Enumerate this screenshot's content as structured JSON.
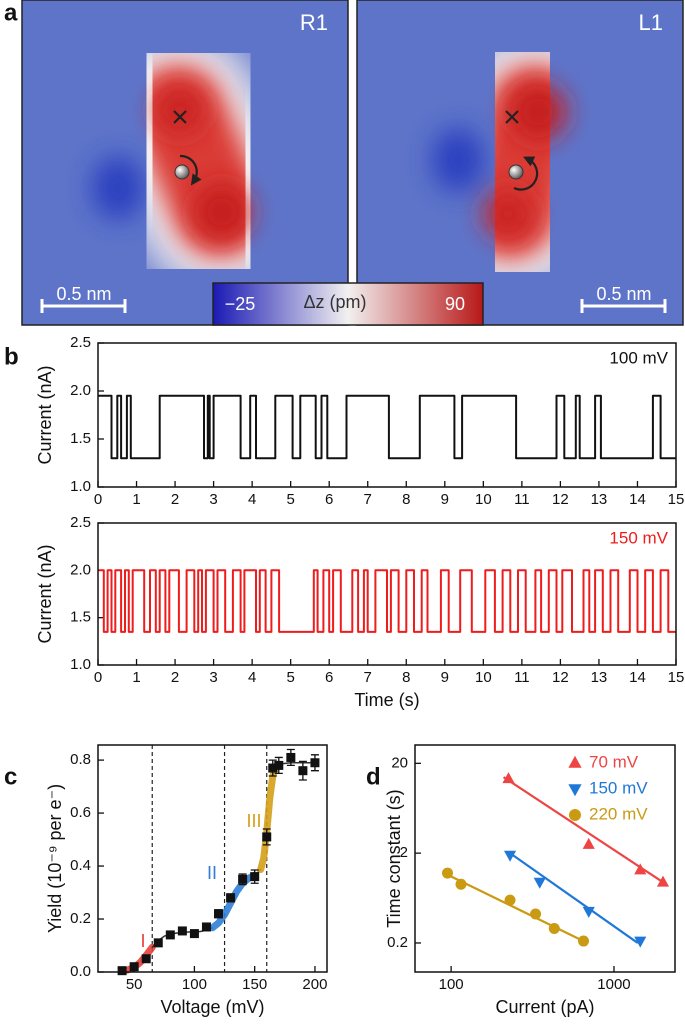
{
  "panel_labels": [
    "a",
    "b",
    "c",
    "d"
  ],
  "images": [
    {
      "label": "R1",
      "scale_bar": "0.5 nm"
    },
    {
      "label": "L1",
      "scale_bar": "0.5 nm"
    }
  ],
  "colorbar": {
    "min": {
      "value": -25,
      "label": "−25"
    },
    "title": "Δz (pm)",
    "max": 90
  },
  "chart_data": [
    {
      "type": "line",
      "ylabel": "Current (nA)",
      "annotation": "100 mV",
      "xlim": [
        0,
        15
      ],
      "xticks": [
        0,
        1,
        2,
        3,
        4,
        5,
        6,
        7,
        8,
        9,
        10,
        11,
        12,
        13,
        14,
        15
      ],
      "ylim": [
        1,
        2.5
      ],
      "yticks": [
        {
          "value": 1,
          "label": "1.0"
        },
        1.5,
        {
          "value": 2,
          "label": "2.0"
        },
        2.5
      ],
      "series": [
        {
          "color": "#111111",
          "x": [
            0,
            0.35,
            0.35,
            0.5,
            0.5,
            0.6,
            0.6,
            0.75,
            0.75,
            0.85,
            0.85,
            1.6,
            1.6,
            2.75,
            2.75,
            2.85,
            2.85,
            2.9,
            2.9,
            3.0,
            3.0,
            3.7,
            3.7,
            3.95,
            3.95,
            4.1,
            4.1,
            4.6,
            4.6,
            5.05,
            5.05,
            5.25,
            5.25,
            5.65,
            5.65,
            5.8,
            5.8,
            5.95,
            5.95,
            6.45,
            6.45,
            7.55,
            7.55,
            8.35,
            8.35,
            9.25,
            9.25,
            9.45,
            9.45,
            10.85,
            10.85,
            11.9,
            11.9,
            12.1,
            12.1,
            12.4,
            12.4,
            12.5,
            12.5,
            12.9,
            12.9,
            13.05,
            13.05,
            14.4,
            14.4,
            14.6,
            14.6,
            15
          ],
          "values": [
            1.95,
            1.95,
            1.3,
            1.3,
            1.95,
            1.95,
            1.3,
            1.3,
            1.95,
            1.95,
            1.3,
            1.3,
            1.95,
            1.95,
            1.3,
            1.3,
            1.95,
            1.95,
            1.3,
            1.3,
            1.95,
            1.95,
            1.3,
            1.3,
            1.95,
            1.95,
            1.3,
            1.3,
            1.95,
            1.95,
            1.3,
            1.3,
            1.95,
            1.95,
            1.3,
            1.3,
            1.95,
            1.95,
            1.3,
            1.3,
            1.95,
            1.95,
            1.3,
            1.3,
            1.95,
            1.95,
            1.3,
            1.3,
            1.95,
            1.95,
            1.3,
            1.3,
            1.95,
            1.95,
            1.3,
            1.3,
            1.95,
            1.95,
            1.3,
            1.3,
            1.95,
            1.95,
            1.3,
            1.3,
            1.95,
            1.95,
            1.3,
            1.3
          ]
        }
      ]
    },
    {
      "type": "line",
      "ylabel": "Current (nA)",
      "xlabel": "Time (s)",
      "annotation": "150 mV",
      "xlim": [
        0,
        15
      ],
      "xticks": [
        0,
        1,
        2,
        3,
        4,
        5,
        6,
        7,
        8,
        9,
        10,
        11,
        12,
        13,
        14,
        15
      ],
      "ylim": [
        1,
        2.5
      ],
      "yticks": [
        {
          "value": 1,
          "label": "1.0"
        },
        1.5,
        {
          "value": 2,
          "label": "2.0"
        },
        2.5
      ],
      "series": [
        {
          "color": "#ee1c1c",
          "x": [
            0,
            0.15,
            0.15,
            0.25,
            0.25,
            0.35,
            0.35,
            0.45,
            0.45,
            0.6,
            0.6,
            0.7,
            0.7,
            0.8,
            0.8,
            0.9,
            0.9,
            1.2,
            1.2,
            1.35,
            1.35,
            1.5,
            1.5,
            1.6,
            1.6,
            1.75,
            1.75,
            1.85,
            1.85,
            2.1,
            2.1,
            2.3,
            2.3,
            2.5,
            2.5,
            2.6,
            2.6,
            2.7,
            2.7,
            2.8,
            2.8,
            3.0,
            3.0,
            3.1,
            3.1,
            3.3,
            3.3,
            3.5,
            3.5,
            3.7,
            3.7,
            3.8,
            3.8,
            4.1,
            4.1,
            4.2,
            4.2,
            4.35,
            4.35,
            4.5,
            4.5,
            4.7,
            4.7,
            5.6,
            5.6,
            5.7,
            5.7,
            5.85,
            5.85,
            6.0,
            6.0,
            6.1,
            6.1,
            6.3,
            6.3,
            6.6,
            6.6,
            6.75,
            6.75,
            6.9,
            6.9,
            7.0,
            7.0,
            7.2,
            7.2,
            7.5,
            7.5,
            7.6,
            7.6,
            7.8,
            7.8,
            8.0,
            8.0,
            8.2,
            8.2,
            8.4,
            8.4,
            8.55,
            8.55,
            8.9,
            8.9,
            9.1,
            9.1,
            9.4,
            9.4,
            9.7,
            9.7,
            10.05,
            10.05,
            10.3,
            10.3,
            10.5,
            10.5,
            10.7,
            10.7,
            10.9,
            10.9,
            11.1,
            11.1,
            11.35,
            11.35,
            11.5,
            11.5,
            11.7,
            11.7,
            11.9,
            11.9,
            12.05,
            12.05,
            12.3,
            12.3,
            12.6,
            12.6,
            12.75,
            12.75,
            12.9,
            12.9,
            13.1,
            13.1,
            13.3,
            13.3,
            13.5,
            13.5,
            13.8,
            13.8,
            14.0,
            14.0,
            14.2,
            14.2,
            14.4,
            14.4,
            14.6,
            14.6,
            14.8,
            14.8,
            15
          ],
          "values": [
            2.0,
            2.0,
            1.35,
            1.35,
            2.0,
            2.0,
            1.35,
            1.35,
            2.0,
            2.0,
            1.35,
            1.35,
            2.0,
            2.0,
            1.35,
            1.35,
            2.0,
            2.0,
            1.35,
            1.35,
            2.0,
            2.0,
            1.35,
            1.35,
            2.0,
            2.0,
            1.35,
            1.35,
            2.0,
            2.0,
            1.35,
            1.35,
            2.0,
            2.0,
            1.35,
            1.35,
            2.0,
            2.0,
            1.35,
            1.35,
            2.0,
            2.0,
            1.35,
            1.35,
            2.0,
            2.0,
            1.35,
            1.35,
            2.0,
            2.0,
            1.35,
            1.35,
            2.0,
            2.0,
            1.35,
            1.35,
            2.0,
            2.0,
            1.35,
            1.35,
            2.0,
            2.0,
            1.35,
            1.35,
            2.0,
            2.0,
            1.35,
            1.35,
            2.0,
            2.0,
            1.35,
            1.35,
            2.0,
            2.0,
            1.35,
            1.35,
            2.0,
            2.0,
            1.35,
            1.35,
            2.0,
            2.0,
            1.35,
            1.35,
            2.0,
            2.0,
            1.35,
            1.35,
            2.0,
            2.0,
            1.35,
            1.35,
            2.0,
            2.0,
            1.35,
            1.35,
            2.0,
            2.0,
            1.35,
            1.35,
            2.0,
            2.0,
            1.35,
            1.35,
            2.0,
            2.0,
            1.35,
            1.35,
            2.0,
            2.0,
            1.35,
            1.35,
            2.0,
            2.0,
            1.35,
            1.35,
            2.0,
            2.0,
            1.35,
            1.35,
            2.0,
            2.0,
            1.35,
            1.35,
            2.0,
            2.0,
            1.35,
            1.35,
            2.0,
            2.0,
            1.35,
            1.35,
            2.0,
            2.0,
            1.35,
            1.35,
            2.0,
            2.0,
            1.35,
            1.35,
            2.0,
            2.0,
            1.35,
            1.35,
            2.0,
            2.0,
            1.35,
            1.35,
            2.0,
            2.0,
            1.35,
            1.35,
            2.0,
            2.0,
            1.35,
            1.35
          ]
        }
      ]
    },
    {
      "type": "scatter",
      "xlabel": "Voltage (mV)",
      "ylabel": "Yield  (10⁻⁹ per e⁻)",
      "xlim": [
        20,
        210
      ],
      "xticks": [
        50,
        100,
        150,
        200
      ],
      "ylim": [
        0,
        0.857
      ],
      "yticks": [
        {
          "value": 0,
          "label": "0.0"
        },
        0.2,
        0.4,
        0.6,
        0.8
      ],
      "vlines": [
        65,
        125,
        160
      ],
      "fits": [
        {
          "color": "#e8413c",
          "x": [
            40,
            45,
            50,
            55,
            60,
            65
          ],
          "values": [
            0.004,
            0.008,
            0.018,
            0.036,
            0.063,
            0.093
          ]
        },
        {
          "color": "#333333",
          "x": [
            65,
            70,
            75,
            80,
            85,
            90,
            95,
            100,
            105,
            110,
            115
          ],
          "values": [
            0.093,
            0.119,
            0.135,
            0.143,
            0.147,
            0.149,
            0.151,
            0.151,
            0.153,
            0.158,
            0.167
          ]
        },
        {
          "color": "#2f7fd8",
          "x": [
            115,
            120,
            125,
            130,
            135,
            140,
            145,
            150
          ],
          "values": [
            0.167,
            0.185,
            0.217,
            0.26,
            0.304,
            0.335,
            0.354,
            0.365
          ]
        },
        {
          "color": "#333333",
          "x": [
            150,
            155
          ],
          "values": [
            0.365,
            0.387
          ]
        },
        {
          "color": "#d4a017",
          "x": [
            155,
            157.5,
            160,
            162.5,
            165,
            167.5,
            170
          ],
          "values": [
            0.387,
            0.43,
            0.527,
            0.656,
            0.74,
            0.774,
            0.785
          ]
        },
        {
          "color": "#333333",
          "x": [
            170,
            180,
            190,
            200
          ],
          "values": [
            0.785,
            0.79,
            0.79,
            0.79
          ]
        }
      ],
      "annotations": [
        {
          "text": "I",
          "color": "#e8413c"
        },
        {
          "text": "II",
          "color": "#2f7fd8"
        },
        {
          "text": "III",
          "color": "#d4a017"
        }
      ],
      "series": [
        {
          "color": "#111111",
          "marker": "square",
          "x": [
            40,
            50,
            60,
            70,
            80,
            90,
            100,
            110,
            120,
            130,
            140,
            150,
            160,
            165,
            170,
            180,
            190,
            200
          ],
          "values": [
            0.005,
            0.02,
            0.05,
            0.11,
            0.14,
            0.155,
            0.145,
            0.17,
            0.22,
            0.28,
            0.35,
            0.36,
            0.51,
            0.77,
            0.78,
            0.81,
            0.76,
            0.79
          ],
          "errors": [
            0.005,
            0.008,
            0.01,
            0.01,
            0.01,
            0.01,
            0.01,
            0.012,
            0.015,
            0.015,
            0.02,
            0.025,
            0.03,
            0.03,
            0.03,
            0.03,
            0.035,
            0.03
          ]
        }
      ]
    },
    {
      "type": "scatter",
      "xlabel": "Current (pA)",
      "ylabel": "Time constant (s)",
      "xscale": "log",
      "yscale": "log",
      "xlim": [
        60,
        2370
      ],
      "xticks": [
        100,
        1000
      ],
      "ylim": [
        0.095,
        32
      ],
      "yticks": [
        0.2,
        2,
        20
      ],
      "legend": "upper right",
      "series": [
        {
          "name": "70 mV",
          "color": "#ee4444",
          "marker": "triangle-up",
          "x": [
            225,
            700,
            1450,
            2000
          ],
          "values": [
            13.5,
            2.5,
            1.3,
            0.95
          ],
          "fit": {
            "x": [
              210,
              2000
            ],
            "values": [
              14,
              0.95
            ]
          }
        },
        {
          "name": "150 mV",
          "color": "#1f78d8",
          "marker": "triangle-down",
          "x": [
            230,
            350,
            700,
            1450
          ],
          "values": [
            1.9,
            0.95,
            0.45,
            0.21
          ],
          "fit": {
            "x": [
              230,
              1400
            ],
            "values": [
              2.0,
              0.2
            ]
          }
        },
        {
          "name": "220 mV",
          "color": "#c99a12",
          "marker": "circle",
          "x": [
            95,
            115,
            230,
            330,
            430,
            650
          ],
          "values": [
            1.2,
            0.9,
            0.6,
            0.42,
            0.29,
            0.21
          ],
          "fit": {
            "x": [
              95,
              650
            ],
            "values": [
              1.15,
              0.21
            ]
          }
        }
      ]
    }
  ]
}
